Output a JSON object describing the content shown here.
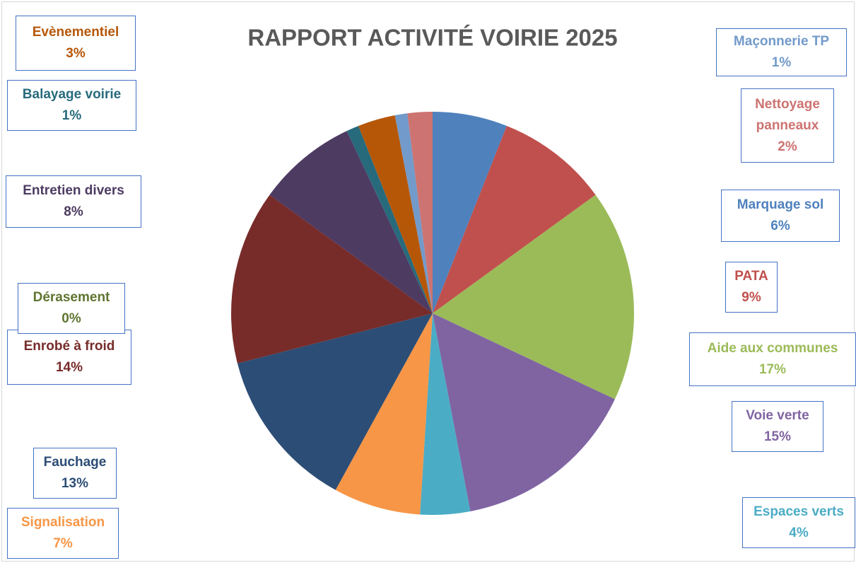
{
  "chart_data": {
    "type": "pie",
    "title": "RAPPORT ACTIVITÉ VOIRIE 2025",
    "categories": [
      "Marquage sol",
      "PATA",
      "Aide aux communes",
      "Voie verte",
      "Espaces verts",
      "Signalisation",
      "Fauchage",
      "Enrobé à froid",
      "Dérasement",
      "Entretien divers",
      "Balayage voirie",
      "Evènementiel",
      "Maçonnerie TP",
      "Nettoyage panneaux"
    ],
    "values": [
      6,
      9,
      17,
      15,
      4,
      7,
      13,
      14,
      0,
      8,
      1,
      3,
      1,
      2
    ],
    "value_labels": [
      "6%",
      "9%",
      "17%",
      "15%",
      "4%",
      "7%",
      "13%",
      "14%",
      "0%",
      "8%",
      "1%",
      "3%",
      "1%",
      "2%"
    ],
    "colors": [
      "#4f81bd",
      "#c0504d",
      "#9bbb59",
      "#8064a2",
      "#4bacc6",
      "#f79646",
      "#2c4d75",
      "#772c2a",
      "#5f7530",
      "#4d3b62",
      "#276a7c",
      "#b65708",
      "#729aca",
      "#cd7371"
    ]
  }
}
